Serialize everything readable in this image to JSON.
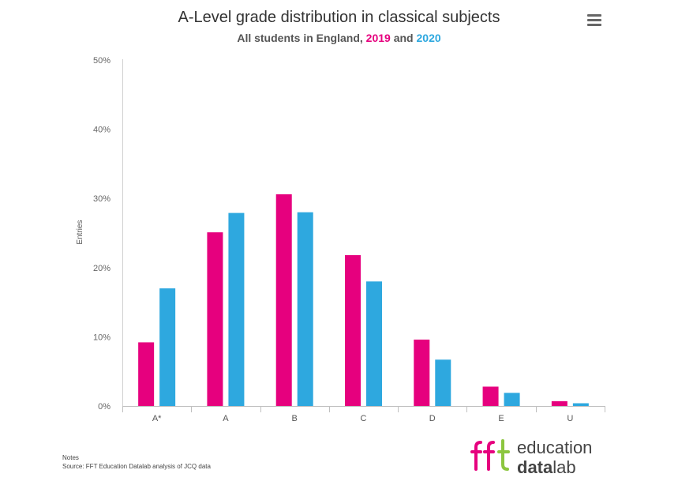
{
  "header": {
    "title": "A-Level grade distribution in classical subjects",
    "subtitle_prefix": "All students in England, ",
    "subtitle_year1": "2019",
    "subtitle_and": " and ",
    "subtitle_year2": "2020"
  },
  "colors": {
    "series_2019": "#e6007e",
    "series_2020": "#2ea8df",
    "logo_green": "#8cc63f"
  },
  "icons": {
    "menu": "hamburger-menu-icon"
  },
  "chart_data": {
    "type": "bar",
    "categories": [
      "A*",
      "A",
      "B",
      "C",
      "D",
      "E",
      "U"
    ],
    "series": [
      {
        "name": "2019",
        "color": "#e6007e",
        "values": [
          9.2,
          25.1,
          30.6,
          21.8,
          9.6,
          2.8,
          0.7
        ]
      },
      {
        "name": "2020",
        "color": "#2ea8df",
        "values": [
          17.0,
          27.9,
          28.0,
          18.0,
          6.7,
          1.9,
          0.4
        ]
      }
    ],
    "ylabel": "Entries",
    "yticks": [
      "0%",
      "10%",
      "20%",
      "30%",
      "40%",
      "50%"
    ],
    "ylim": [
      0,
      50
    ],
    "grid": false,
    "legend": "subtitle"
  },
  "footer": {
    "notes_label": "Notes",
    "source": "Source: FFT Education Datalab analysis of JCQ data"
  },
  "logo": {
    "mark": "fft",
    "line1": "education",
    "line2_bold": "data",
    "line2_light": "lab"
  }
}
